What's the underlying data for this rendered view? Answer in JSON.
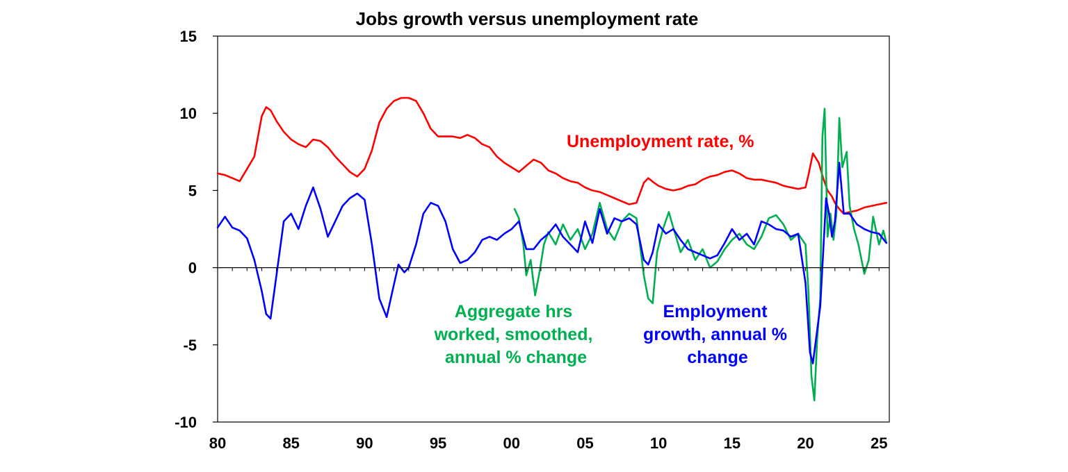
{
  "chart_data": {
    "type": "line",
    "title": "Jobs growth versus unemployment rate",
    "xlabel": "",
    "ylabel": "",
    "xlim": [
      1980,
      2025.7
    ],
    "ylim": [
      -10,
      15
    ],
    "y_ticks": [
      15,
      10,
      5,
      0,
      -5,
      -10
    ],
    "x_tick_labels": [
      {
        "x": 1980,
        "label": "80"
      },
      {
        "x": 1985,
        "label": "85"
      },
      {
        "x": 1990,
        "label": "90"
      },
      {
        "x": 1995,
        "label": "95"
      },
      {
        "x": 2000,
        "label": "00"
      },
      {
        "x": 2005,
        "label": "05"
      },
      {
        "x": 2010,
        "label": "10"
      },
      {
        "x": 2015,
        "label": "15"
      },
      {
        "x": 2020,
        "label": "20"
      },
      {
        "x": 2025,
        "label": "25"
      }
    ],
    "grid": false,
    "legend": "none (series labelled by annotations)",
    "series": [
      {
        "name": "Unemployment rate, %",
        "color": "#ff0000",
        "x": [
          1980.0,
          1980.5,
          1981.0,
          1981.5,
          1982.0,
          1982.5,
          1983.0,
          1983.3,
          1983.6,
          1984.0,
          1984.5,
          1985.0,
          1985.5,
          1986.0,
          1986.5,
          1987.0,
          1987.5,
          1988.0,
          1988.5,
          1989.0,
          1989.5,
          1990.0,
          1990.5,
          1991.0,
          1991.5,
          1992.0,
          1992.5,
          1993.0,
          1993.5,
          1994.0,
          1994.5,
          1995.0,
          1995.5,
          1996.0,
          1996.5,
          1997.0,
          1997.5,
          1998.0,
          1998.5,
          1999.0,
          1999.5,
          2000.0,
          2000.5,
          2001.0,
          2001.5,
          2002.0,
          2002.5,
          2003.0,
          2003.5,
          2004.0,
          2004.5,
          2005.0,
          2005.5,
          2006.0,
          2006.5,
          2007.0,
          2007.5,
          2008.0,
          2008.5,
          2009.0,
          2009.3,
          2009.7,
          2010.0,
          2010.5,
          2011.0,
          2011.5,
          2012.0,
          2012.5,
          2013.0,
          2013.5,
          2014.0,
          2014.5,
          2015.0,
          2015.5,
          2016.0,
          2016.5,
          2017.0,
          2017.5,
          2018.0,
          2018.5,
          2019.0,
          2019.5,
          2020.0,
          2020.2,
          2020.5,
          2020.9,
          2021.2,
          2021.5,
          2021.8,
          2022.0,
          2022.3,
          2022.6,
          2023.0,
          2023.5,
          2024.0,
          2024.5,
          2025.0,
          2025.5
        ],
        "values": [
          6.1,
          6.0,
          5.8,
          5.6,
          6.4,
          7.2,
          9.8,
          10.4,
          10.2,
          9.5,
          8.8,
          8.3,
          8.0,
          7.8,
          8.3,
          8.2,
          7.8,
          7.2,
          6.7,
          6.2,
          5.9,
          6.4,
          7.6,
          9.4,
          10.3,
          10.8,
          11.0,
          11.0,
          10.8,
          10.0,
          9.0,
          8.5,
          8.5,
          8.5,
          8.4,
          8.6,
          8.4,
          8.0,
          7.8,
          7.2,
          6.8,
          6.5,
          6.2,
          6.6,
          7.0,
          6.8,
          6.3,
          6.1,
          5.8,
          5.6,
          5.5,
          5.2,
          5.0,
          4.9,
          4.7,
          4.5,
          4.3,
          4.1,
          4.2,
          5.5,
          5.8,
          5.5,
          5.3,
          5.1,
          5.0,
          5.1,
          5.3,
          5.4,
          5.7,
          5.9,
          6.0,
          6.2,
          6.3,
          6.1,
          5.8,
          5.7,
          5.7,
          5.6,
          5.5,
          5.3,
          5.2,
          5.1,
          5.2,
          6.0,
          7.4,
          6.8,
          5.8,
          5.0,
          4.6,
          4.2,
          3.8,
          3.5,
          3.6,
          3.7,
          3.9,
          4.0,
          4.1,
          4.2
        ]
      },
      {
        "name": "Employment growth, annual % change",
        "color": "#0000ff",
        "x": [
          1980.0,
          1980.5,
          1981.0,
          1981.5,
          1982.0,
          1982.5,
          1983.0,
          1983.3,
          1983.6,
          1984.0,
          1984.5,
          1985.0,
          1985.5,
          1986.0,
          1986.5,
          1987.0,
          1987.5,
          1988.0,
          1988.5,
          1989.0,
          1989.5,
          1990.0,
          1990.5,
          1991.0,
          1991.5,
          1991.9,
          1992.3,
          1992.7,
          1993.0,
          1993.5,
          1994.0,
          1994.5,
          1995.0,
          1995.5,
          1996.0,
          1996.5,
          1997.0,
          1997.5,
          1998.0,
          1998.5,
          1999.0,
          1999.5,
          2000.0,
          2000.5,
          2001.0,
          2001.5,
          2002.0,
          2002.5,
          2003.0,
          2003.5,
          2004.0,
          2004.5,
          2005.0,
          2005.5,
          2006.0,
          2006.5,
          2007.0,
          2007.5,
          2008.0,
          2008.5,
          2009.0,
          2009.3,
          2009.6,
          2010.0,
          2010.5,
          2011.0,
          2011.5,
          2012.0,
          2012.5,
          2013.0,
          2013.5,
          2014.0,
          2014.5,
          2015.0,
          2015.5,
          2016.0,
          2016.5,
          2017.0,
          2017.5,
          2018.0,
          2018.5,
          2019.0,
          2019.5,
          2020.0,
          2020.3,
          2020.5,
          2020.8,
          2021.0,
          2021.2,
          2021.4,
          2021.6,
          2021.8,
          2022.0,
          2022.3,
          2022.6,
          2023.0,
          2023.5,
          2024.0,
          2024.5,
          2025.0,
          2025.5
        ],
        "values": [
          2.6,
          3.3,
          2.6,
          2.4,
          1.9,
          0.5,
          -1.5,
          -3.0,
          -3.3,
          -0.5,
          3.0,
          3.5,
          2.5,
          4.0,
          5.2,
          3.8,
          2.0,
          3.0,
          4.0,
          4.5,
          4.8,
          4.4,
          1.5,
          -2.0,
          -3.2,
          -1.5,
          0.2,
          -0.3,
          0.0,
          1.5,
          3.5,
          4.2,
          4.0,
          3.0,
          1.2,
          0.3,
          0.5,
          1.0,
          1.8,
          2.0,
          1.8,
          2.2,
          2.5,
          3.0,
          1.2,
          1.2,
          1.8,
          2.2,
          2.8,
          2.0,
          1.5,
          1.0,
          3.0,
          1.6,
          3.8,
          2.2,
          3.2,
          3.0,
          3.2,
          2.8,
          0.5,
          0.2,
          1.0,
          2.8,
          2.2,
          2.5,
          1.8,
          1.2,
          1.0,
          0.8,
          0.6,
          0.8,
          1.6,
          2.5,
          1.8,
          2.2,
          1.5,
          3.0,
          2.8,
          2.5,
          2.4,
          2.0,
          2.2,
          -1.0,
          -5.5,
          -6.2,
          -4.0,
          -2.5,
          1.0,
          4.5,
          3.5,
          2.0,
          3.0,
          6.8,
          3.5,
          3.5,
          2.8,
          2.5,
          2.3,
          2.2,
          1.6
        ]
      },
      {
        "name": "Aggregate hrs worked, smoothed, annual % change",
        "color": "#00b050",
        "x": [
          2000.2,
          2000.5,
          2000.8,
          2001.0,
          2001.3,
          2001.6,
          2001.9,
          2002.2,
          2002.5,
          2003.0,
          2003.5,
          2004.0,
          2004.5,
          2005.0,
          2005.5,
          2006.0,
          2006.5,
          2007.0,
          2007.5,
          2008.0,
          2008.5,
          2009.0,
          2009.3,
          2009.6,
          2009.9,
          2010.3,
          2010.7,
          2011.0,
          2011.5,
          2012.0,
          2012.5,
          2013.0,
          2013.5,
          2014.0,
          2014.5,
          2015.0,
          2015.5,
          2016.0,
          2016.5,
          2017.0,
          2017.5,
          2018.0,
          2018.5,
          2019.0,
          2019.5,
          2020.0,
          2020.2,
          2020.4,
          2020.6,
          2020.8,
          2021.0,
          2021.15,
          2021.3,
          2021.5,
          2021.7,
          2021.9,
          2022.1,
          2022.3,
          2022.5,
          2022.8,
          2023.0,
          2023.3,
          2023.6,
          2024.0,
          2024.3,
          2024.6,
          2025.0,
          2025.3,
          2025.5
        ],
        "values": [
          3.8,
          3.2,
          1.5,
          -0.5,
          0.5,
          -1.8,
          -0.3,
          1.5,
          2.3,
          1.5,
          2.8,
          1.8,
          2.5,
          1.2,
          2.2,
          4.2,
          2.5,
          1.8,
          3.0,
          3.5,
          3.2,
          -0.5,
          -2.0,
          -2.3,
          1.0,
          2.5,
          3.6,
          2.6,
          1.0,
          1.8,
          0.5,
          1.2,
          0.0,
          0.4,
          1.2,
          1.8,
          2.2,
          1.5,
          1.2,
          2.0,
          3.2,
          3.4,
          2.8,
          1.8,
          2.2,
          1.5,
          -1.5,
          -7.0,
          -8.6,
          -4.5,
          -2.0,
          8.5,
          10.3,
          2.0,
          3.5,
          1.8,
          3.5,
          9.7,
          6.5,
          7.5,
          4.0,
          2.5,
          1.5,
          -0.4,
          0.5,
          3.3,
          1.5,
          2.4,
          1.6
        ]
      }
    ],
    "annotations": {
      "unemployment": "Unemployment rate, %",
      "hours": [
        "Aggregate hrs",
        "worked, smoothed,",
        "annual % change"
      ],
      "employment": [
        "Employment",
        "growth, annual %",
        "change"
      ]
    }
  }
}
